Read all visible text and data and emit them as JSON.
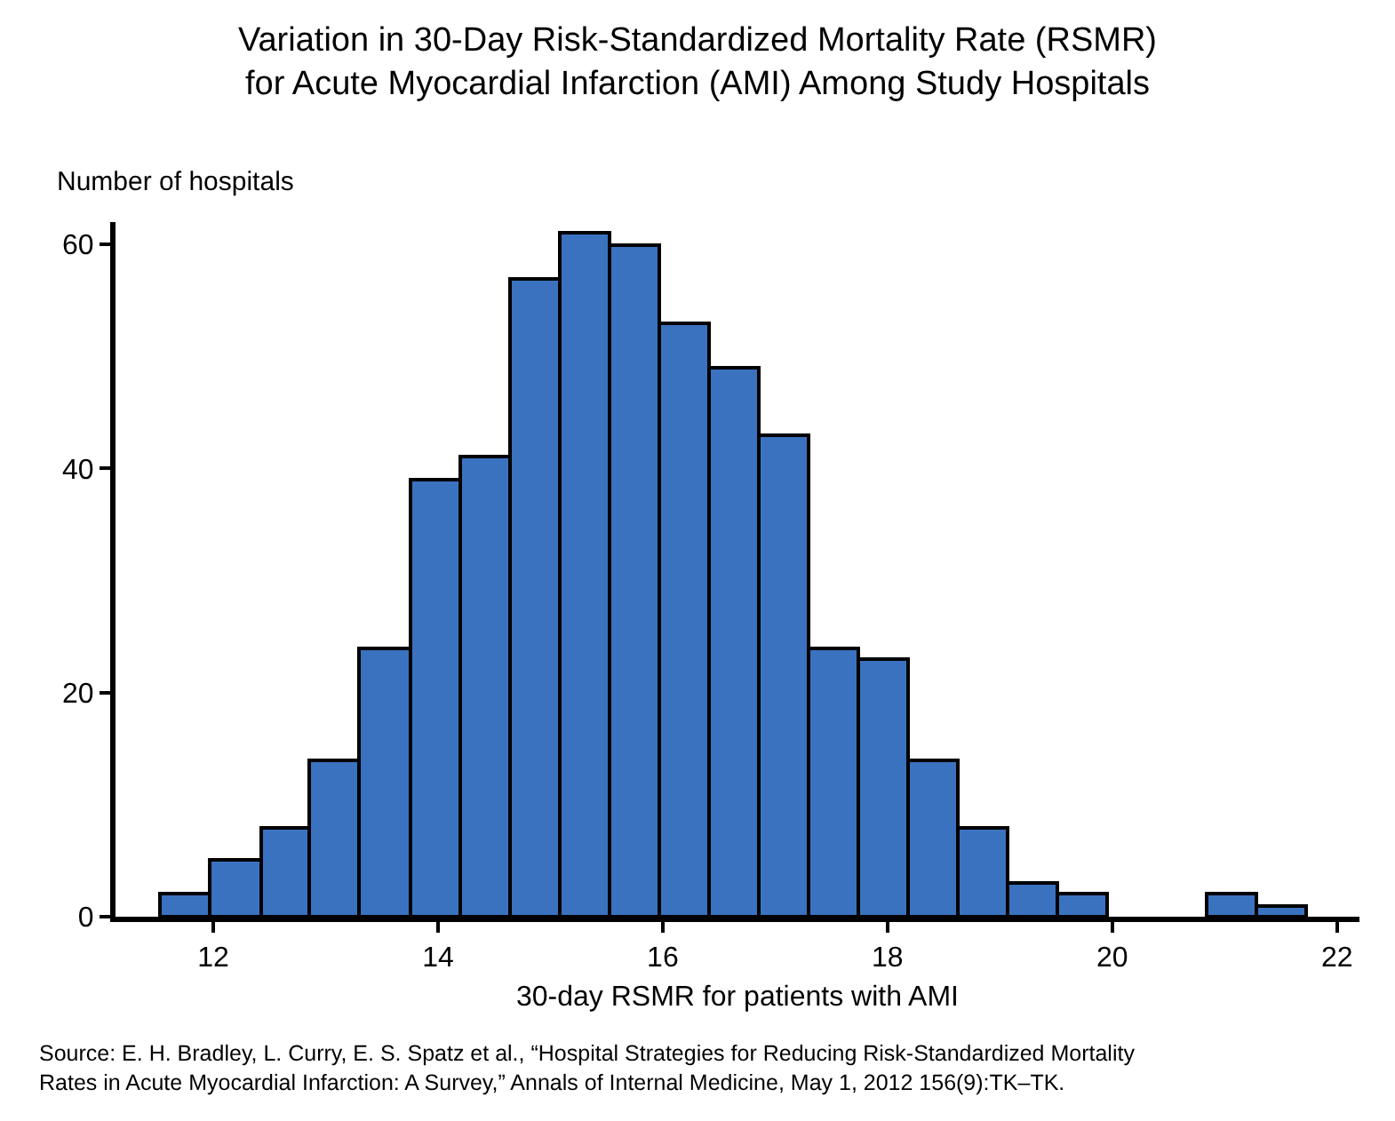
{
  "chart_data": {
    "type": "histogram",
    "title": "Variation in 30-Day Risk-Standardized Mortality Rate (RSMR)\nfor Acute Myocardial Infarction (AMI) Among Study Hospitals",
    "ylabel": "Number of hospitals",
    "xlabel": "30-day RSMR for patients with AMI",
    "bins": [
      11.53,
      11.97,
      12.42,
      12.86,
      13.3,
      13.75,
      14.19,
      14.64,
      15.08,
      15.52,
      15.97,
      16.41,
      16.85,
      17.3,
      17.74,
      18.18,
      18.63,
      19.07,
      19.51,
      19.96,
      20.84,
      21.29,
      21.73
    ],
    "values": [
      2,
      5,
      8,
      14,
      24,
      39,
      41,
      57,
      61,
      60,
      53,
      49,
      43,
      24,
      23,
      14,
      8,
      3,
      2,
      0,
      2,
      1
    ],
    "color": "#3a72c0",
    "xlim": [
      11.13,
      22.2
    ],
    "xticks": [
      12,
      14,
      16,
      18,
      20,
      22
    ],
    "ylim": [
      0,
      62
    ],
    "yticks": [
      0,
      20,
      40,
      60
    ],
    "grid": false,
    "annotations": [
      "Source: E. H. Bradley, L. Curry, E. S. Spatz et al., “Hospital Strategies for Reducing Risk-Standardized Mortality\nRates in Acute Myocardial Infarction: A Survey,” Annals of Internal Medicine, May 1, 2012 156(9):TK–TK."
    ]
  }
}
